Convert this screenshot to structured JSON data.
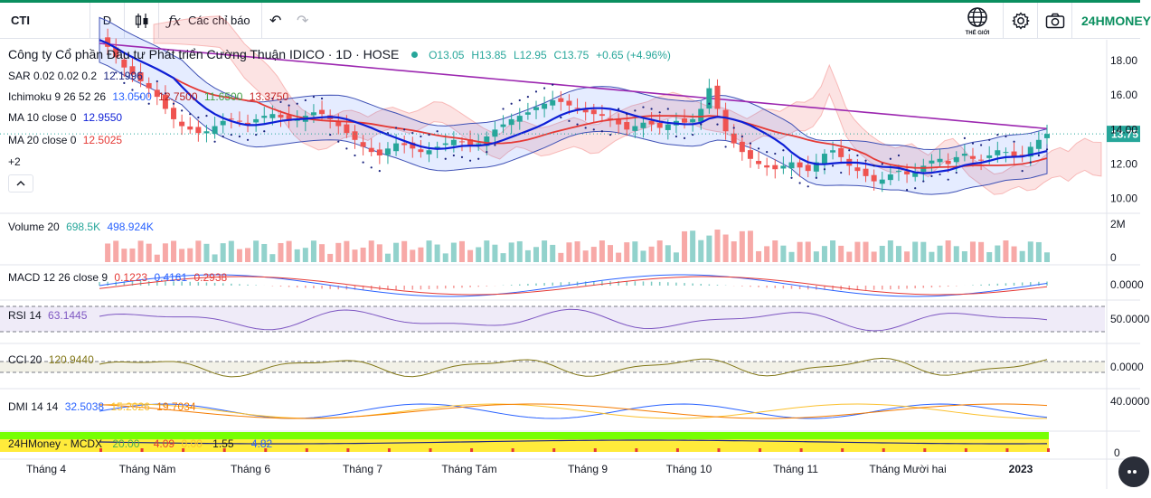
{
  "toolbar": {
    "symbol": "CTI",
    "interval": "D",
    "indicators_label": "Các chỉ báo",
    "globe_caption": "THẾ GIỚI",
    "brand": "24HMONEY"
  },
  "header": {
    "title": "Công ty Cổ phần Đầu tư Phát triển Cường Thuận IDICO · 1D · HOSE",
    "ohlc": {
      "open": "O13.05",
      "high": "H13.85",
      "low": "L12.95",
      "close": "C13.75",
      "change": "+0.65 (+4.96%)"
    }
  },
  "legends": {
    "sar": {
      "label": "SAR 0.02 0.02 0.2",
      "value": "12.1996"
    },
    "ichimoku": {
      "label": "Ichimoku 9 26 52 26",
      "values": [
        "13.0500",
        "12.7500",
        "11.6500",
        "13.3750"
      ]
    },
    "ma10": {
      "label": "MA 10 close 0",
      "value": "12.9550"
    },
    "ma20": {
      "label": "MA 20 close 0",
      "value": "12.5025"
    },
    "more": "+2",
    "volume": {
      "label": "Volume 20",
      "values": [
        "698.5K",
        "498.924K"
      ]
    },
    "macd": {
      "label": "MACD 12 26 close 9",
      "values": [
        "0.1223",
        "0.4161",
        "0.2938"
      ]
    },
    "rsi": {
      "label": "RSI 14",
      "value": "63.1445"
    },
    "cci": {
      "label": "CCI 20",
      "value": "120.9440"
    },
    "dmi": {
      "label": "DMI 14 14",
      "values": [
        "32.5038",
        "15.2026",
        "19.7034"
      ]
    },
    "mcdx": {
      "label": "24HMoney - MCDX",
      "values": [
        "20.00",
        "4.09",
        "0.00",
        "1.55",
        "4.82"
      ]
    }
  },
  "colors": {
    "up": "#26a69a",
    "down": "#ef5350",
    "ma10": "#0d1fd6",
    "ma20": "#e53935",
    "sar": "#1a237e",
    "long_ma": "#9c27b0",
    "brand": "#0b8f5f"
  },
  "chart_data": {
    "type": "candlestick",
    "x_ticks": [
      "Tháng 4",
      "Tháng Năm",
      "Tháng 6",
      "Tháng 7",
      "Tháng Tám",
      "Tháng 9",
      "Tháng 10",
      "Tháng 11",
      "Tháng Mười hai",
      "2023"
    ],
    "price_axis": {
      "ticks": [
        18.0,
        16.0,
        14.0,
        12.0,
        10.0
      ],
      "ylim": [
        9.3,
        19.0
      ],
      "last_price": "13.75"
    },
    "volume_axis": {
      "ticks": [
        "2M",
        "0"
      ]
    },
    "macd_axis": {
      "ticks": [
        "0.0000"
      ]
    },
    "rsi_axis": {
      "ticks": [
        "50.0000"
      ]
    },
    "cci_axis": {
      "ticks": [
        "0.0000"
      ]
    },
    "dmi_axis": {
      "ticks": [
        "40.0000"
      ]
    },
    "mcdx_axis": {
      "ticks": [
        "0"
      ]
    },
    "close_series": [
      19.2,
      18.8,
      18.2,
      17.6,
      17.2,
      16.8,
      16.4,
      15.9,
      15.2,
      14.6,
      14.2,
      14.0,
      13.8,
      13.9,
      14.2,
      14.5,
      14.6,
      14.5,
      14.3,
      14.6,
      14.8,
      14.9,
      14.7,
      14.5,
      14.6,
      14.8,
      15.0,
      14.9,
      14.6,
      14.2,
      13.8,
      13.4,
      13.0,
      12.7,
      12.5,
      12.9,
      13.2,
      13.1,
      12.9,
      12.7,
      12.8,
      13.0,
      13.2,
      13.4,
      13.3,
      13.1,
      13.2,
      13.6,
      14.0,
      14.3,
      14.6,
      14.8,
      15.0,
      15.3,
      15.5,
      15.7,
      15.6,
      15.4,
      15.2,
      15.0,
      14.9,
      14.8,
      14.6,
      14.3,
      14.0,
      14.2,
      14.4,
      14.3,
      14.1,
      14.3,
      14.5,
      14.4,
      14.6,
      15.2,
      16.4,
      15.2,
      13.9,
      13.2,
      12.7,
      12.3,
      12.0,
      11.8,
      11.7,
      11.9,
      12.1,
      11.8,
      11.6,
      12.1,
      12.6,
      12.8,
      12.4,
      11.9,
      11.6,
      11.3,
      11.0,
      11.1,
      11.4,
      11.6,
      11.4,
      11.5,
      11.9,
      12.2,
      12.3,
      12.0,
      12.4,
      12.6,
      12.3,
      12.2,
      12.5,
      12.8,
      12.7,
      12.4,
      12.5,
      13.0,
      13.4,
      13.75
    ]
  }
}
